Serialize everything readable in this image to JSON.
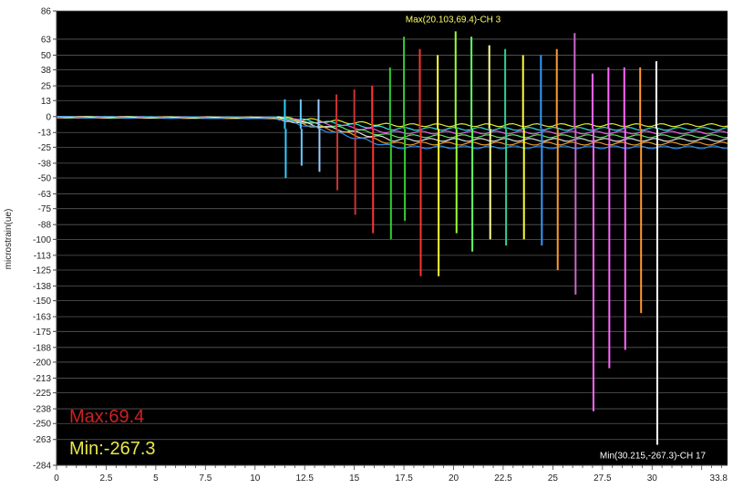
{
  "chart_data": {
    "type": "line",
    "ylabel": "microstrain(ue)",
    "xlim": [
      0,
      33.8
    ],
    "ylim": [
      -284,
      86
    ],
    "grid": true,
    "x_ticks": [
      "0",
      "2.5",
      "5",
      "7.5",
      "10",
      "12.5",
      "15",
      "17.5",
      "20",
      "22.5",
      "25",
      "27.5",
      "30",
      "33.8"
    ],
    "x_tick_values": [
      0,
      2.5,
      5,
      7.5,
      10,
      12.5,
      15,
      17.5,
      20,
      22.5,
      25,
      27.5,
      30,
      33.8
    ],
    "y_ticks": [
      "86",
      "63",
      "50",
      "38",
      "25",
      "13",
      "0",
      "-13",
      "-25",
      "-38",
      "-50",
      "-63",
      "-75",
      "-88",
      "-100",
      "-113",
      "-125",
      "-138",
      "-150",
      "-163",
      "-175",
      "-188",
      "-200",
      "-213",
      "-225",
      "-238",
      "-250",
      "-263",
      "-284"
    ],
    "y_tick_values": [
      86,
      63,
      50,
      38,
      25,
      13,
      0,
      -13,
      -25,
      -38,
      -50,
      -63,
      -75,
      -88,
      -100,
      -113,
      -125,
      -138,
      -150,
      -163,
      -175,
      -188,
      -200,
      -213,
      -225,
      -238,
      -250,
      -263,
      -284
    ],
    "max_annotation": {
      "text": "Max(20.103,69.4)-CH 3",
      "x": 20.103,
      "y": 69.4
    },
    "min_annotation": {
      "text": "Min(30.215,-267.3)-CH 17",
      "x": 30.215,
      "y": -267.3
    },
    "max_label": "Max:69.4",
    "min_label": "Min:-267.3",
    "baseline_colors": [
      "#ffff33",
      "#33ffff",
      "#ff66ff",
      "#66ff66",
      "#ffffff",
      "#ffaa33",
      "#3399ff"
    ],
    "spikes": [
      {
        "x": 11.5,
        "up": 14,
        "down": -50,
        "color": "#33ccff"
      },
      {
        "x": 12.3,
        "up": 14,
        "down": -40,
        "color": "#66ccff"
      },
      {
        "x": 13.2,
        "up": 14,
        "down": -45,
        "color": "#99ccff"
      },
      {
        "x": 14.1,
        "up": 18,
        "down": -60,
        "color": "#cc3333"
      },
      {
        "x": 15.0,
        "up": 22,
        "down": -80,
        "color": "#cc3333"
      },
      {
        "x": 15.9,
        "up": 25,
        "down": -95,
        "color": "#ff3333"
      },
      {
        "x": 16.8,
        "up": 40,
        "down": -100,
        "color": "#33cc33"
      },
      {
        "x": 17.5,
        "up": 65,
        "down": -85,
        "color": "#33cc33"
      },
      {
        "x": 18.3,
        "up": 55,
        "down": -130,
        "color": "#ff3333"
      },
      {
        "x": 19.2,
        "up": 50,
        "down": -130,
        "color": "#ffff33"
      },
      {
        "x": 20.103,
        "up": 69.4,
        "down": -95,
        "color": "#99ff33"
      },
      {
        "x": 20.9,
        "up": 65,
        "down": -110,
        "color": "#66ff66"
      },
      {
        "x": 21.8,
        "up": 58,
        "down": -100,
        "color": "#ffff99"
      },
      {
        "x": 22.6,
        "up": 55,
        "down": -105,
        "color": "#33cc99"
      },
      {
        "x": 23.5,
        "up": 50,
        "down": -100,
        "color": "#ffff33"
      },
      {
        "x": 24.4,
        "up": 50,
        "down": -105,
        "color": "#3399ff"
      },
      {
        "x": 25.2,
        "up": 55,
        "down": -125,
        "color": "#ff9933"
      },
      {
        "x": 26.1,
        "up": 68,
        "down": -145,
        "color": "#cc66cc"
      },
      {
        "x": 27.0,
        "up": 35,
        "down": -240,
        "color": "#ff66ff"
      },
      {
        "x": 27.8,
        "up": 40,
        "down": -205,
        "color": "#ff66ff"
      },
      {
        "x": 28.6,
        "up": 40,
        "down": -190,
        "color": "#ff66ff"
      },
      {
        "x": 29.4,
        "up": 40,
        "down": -160,
        "color": "#ff9933"
      },
      {
        "x": 30.215,
        "up": 45,
        "down": -267.3,
        "color": "#ffffff"
      }
    ]
  }
}
